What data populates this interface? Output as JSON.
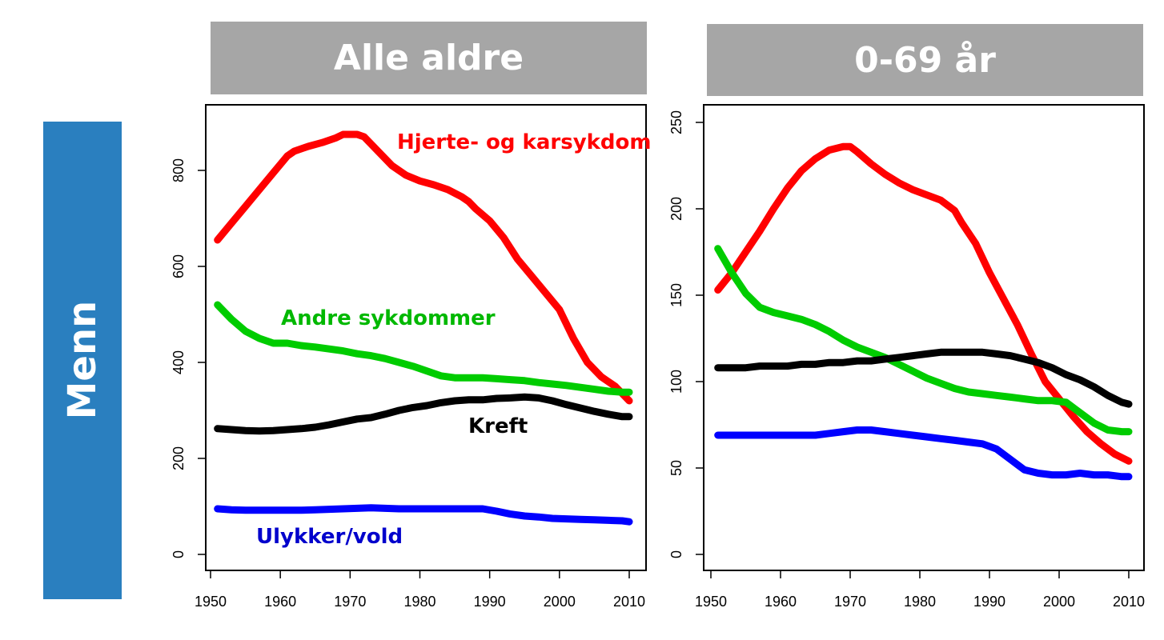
{
  "row_label": "Menn",
  "panels": [
    {
      "title": "Alle aldre"
    },
    {
      "title": "0-69 år"
    }
  ],
  "colors": {
    "red": "#ff0000",
    "green": "#00cc00",
    "black": "#000000",
    "blue": "#0000ff",
    "header_gray": "#a6a6a6",
    "row_blue": "#2a7fbf",
    "label_blue": "#0000cc",
    "label_green": "#00b800"
  },
  "chart_data": [
    {
      "type": "line",
      "title": "Alle aldre",
      "xlabel": "",
      "ylabel": "",
      "xlim": [
        1950,
        2010
      ],
      "ylim": [
        0,
        900
      ],
      "x_ticks": [
        1950,
        1960,
        1970,
        1980,
        1990,
        2000,
        2010
      ],
      "y_ticks": [
        0,
        200,
        400,
        600,
        800
      ],
      "grid": false,
      "series": [
        {
          "name": "Hjerte- og karsykdom",
          "color": "#ff0000",
          "x": [
            1951,
            1953,
            1955,
            1957,
            1959,
            1961,
            1962,
            1964,
            1966,
            1968,
            1969,
            1970,
            1971,
            1972,
            1974,
            1976,
            1978,
            1980,
            1982,
            1984,
            1986,
            1987,
            1988,
            1990,
            1992,
            1994,
            1996,
            1998,
            2000,
            2002,
            2004,
            2006,
            2008,
            2010
          ],
          "y": [
            655,
            690,
            725,
            760,
            795,
            830,
            840,
            850,
            858,
            868,
            875,
            875,
            875,
            870,
            840,
            810,
            790,
            778,
            770,
            760,
            745,
            735,
            720,
            695,
            660,
            615,
            580,
            545,
            510,
            450,
            400,
            370,
            350,
            320
          ]
        },
        {
          "name": "Andre sykdommer",
          "color": "#00cc00",
          "x": [
            1951,
            1953,
            1955,
            1957,
            1959,
            1961,
            1963,
            1965,
            1967,
            1969,
            1971,
            1973,
            1975,
            1977,
            1979,
            1981,
            1983,
            1985,
            1987,
            1989,
            1991,
            1993,
            1995,
            1997,
            1999,
            2001,
            2003,
            2005,
            2007,
            2009,
            2010
          ],
          "y": [
            520,
            490,
            465,
            450,
            440,
            440,
            435,
            432,
            428,
            424,
            418,
            414,
            408,
            400,
            392,
            382,
            372,
            368,
            368,
            368,
            366,
            364,
            362,
            358,
            355,
            352,
            348,
            344,
            340,
            338,
            338
          ]
        },
        {
          "name": "Kreft",
          "color": "#000000",
          "x": [
            1951,
            1953,
            1955,
            1957,
            1959,
            1961,
            1963,
            1965,
            1967,
            1969,
            1971,
            1973,
            1975,
            1977,
            1979,
            1981,
            1983,
            1985,
            1987,
            1989,
            1991,
            1993,
            1995,
            1997,
            1999,
            2001,
            2003,
            2005,
            2007,
            2009,
            2010
          ],
          "y": [
            262,
            260,
            258,
            257,
            258,
            260,
            262,
            265,
            270,
            276,
            282,
            285,
            292,
            300,
            306,
            310,
            316,
            320,
            322,
            322,
            325,
            326,
            328,
            326,
            320,
            312,
            305,
            298,
            292,
            287,
            287
          ]
        },
        {
          "name": "Ulykker/vold",
          "color": "#0000ff",
          "x": [
            1951,
            1953,
            1955,
            1957,
            1959,
            1961,
            1963,
            1965,
            1967,
            1969,
            1971,
            1973,
            1975,
            1977,
            1979,
            1981,
            1983,
            1985,
            1987,
            1989,
            1991,
            1993,
            1995,
            1997,
            1999,
            2001,
            2003,
            2005,
            2007,
            2009,
            2010
          ],
          "y": [
            95,
            93,
            92,
            92,
            92,
            92,
            92,
            93,
            94,
            95,
            96,
            97,
            96,
            95,
            95,
            95,
            95,
            95,
            95,
            95,
            90,
            84,
            80,
            78,
            75,
            74,
            73,
            72,
            71,
            70,
            68
          ]
        }
      ]
    },
    {
      "type": "line",
      "title": "0-69 år",
      "xlabel": "",
      "ylabel": "",
      "xlim": [
        1950,
        2010
      ],
      "ylim": [
        0,
        260
      ],
      "x_ticks": [
        1950,
        1960,
        1970,
        1980,
        1990,
        2000,
        2010
      ],
      "y_ticks": [
        0,
        50,
        100,
        150,
        200,
        250
      ],
      "grid": false,
      "series": [
        {
          "name": "Hjerte- og karsykdom",
          "color": "#ff0000",
          "x": [
            1951,
            1953,
            1955,
            1957,
            1959,
            1961,
            1963,
            1965,
            1967,
            1969,
            1970,
            1971,
            1973,
            1975,
            1977,
            1979,
            1981,
            1983,
            1985,
            1986,
            1988,
            1990,
            1992,
            1994,
            1996,
            1998,
            2000,
            2002,
            2004,
            2006,
            2008,
            2010
          ],
          "y": [
            153,
            163,
            175,
            187,
            200,
            212,
            222,
            229,
            234,
            236,
            236,
            233,
            226,
            220,
            215,
            211,
            208,
            205,
            199,
            192,
            180,
            163,
            148,
            133,
            116,
            100,
            90,
            80,
            71,
            64,
            58,
            54
          ]
        },
        {
          "name": "",
          "color": "#00cc00",
          "x": [
            1951,
            1953,
            1955,
            1957,
            1959,
            1961,
            1963,
            1965,
            1967,
            1969,
            1971,
            1973,
            1975,
            1977,
            1979,
            1981,
            1983,
            1985,
            1987,
            1989,
            1991,
            1993,
            1995,
            1997,
            1999,
            2001,
            2003,
            2005,
            2007,
            2009,
            2010
          ],
          "y": [
            177,
            163,
            151,
            143,
            140,
            138,
            136,
            133,
            129,
            124,
            120,
            117,
            114,
            110,
            106,
            102,
            99,
            96,
            94,
            93,
            92,
            91,
            90,
            89,
            89,
            88,
            82,
            76,
            72,
            71,
            71
          ]
        },
        {
          "name": "",
          "color": "#000000",
          "x": [
            1951,
            1953,
            1955,
            1957,
            1959,
            1961,
            1963,
            1965,
            1967,
            1969,
            1971,
            1973,
            1975,
            1977,
            1979,
            1981,
            1983,
            1985,
            1987,
            1989,
            1991,
            1993,
            1995,
            1997,
            1999,
            2001,
            2003,
            2005,
            2007,
            2009,
            2010
          ],
          "y": [
            108,
            108,
            108,
            109,
            109,
            109,
            110,
            110,
            111,
            111,
            112,
            112,
            113,
            114,
            115,
            116,
            117,
            117,
            117,
            117,
            116,
            115,
            113,
            111,
            108,
            104,
            101,
            97,
            92,
            88,
            87
          ]
        },
        {
          "name": "",
          "color": "#0000ff",
          "x": [
            1951,
            1953,
            1955,
            1957,
            1959,
            1961,
            1963,
            1965,
            1967,
            1969,
            1971,
            1973,
            1975,
            1977,
            1979,
            1981,
            1983,
            1985,
            1987,
            1989,
            1991,
            1993,
            1995,
            1997,
            1999,
            2001,
            2003,
            2005,
            2007,
            2009,
            2010
          ],
          "y": [
            69,
            69,
            69,
            69,
            69,
            69,
            69,
            69,
            70,
            71,
            72,
            72,
            71,
            70,
            69,
            68,
            67,
            66,
            65,
            64,
            61,
            55,
            49,
            47,
            46,
            46,
            47,
            46,
            46,
            45,
            45
          ]
        }
      ]
    }
  ]
}
